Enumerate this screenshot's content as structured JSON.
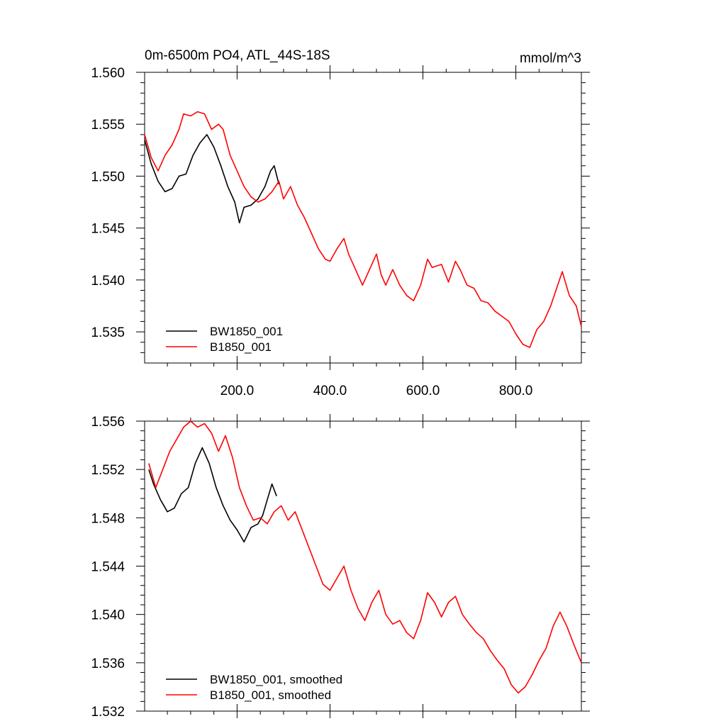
{
  "chart_data": [
    {
      "type": "line",
      "title": "0m-6500m PO4, ATL_44S-18S",
      "units": "mmol/m^3",
      "xlim": [
        1,
        941
      ],
      "ylim": [
        1.532,
        1.56
      ],
      "x_ticks": [
        200,
        400,
        600,
        800
      ],
      "x_tick_labels": [
        "200.0",
        "400.0",
        "600.0",
        "800.0"
      ],
      "y_ticks": [
        1.535,
        1.54,
        1.545,
        1.55,
        1.555,
        1.56
      ],
      "y_tick_labels": [
        "1.535",
        "1.540",
        "1.545",
        "1.550",
        "1.555",
        "1.560"
      ],
      "legend_position": "bottom-left",
      "series": [
        {
          "name": "BW1850_001",
          "color": "#000000",
          "x": [
            1,
            15,
            30,
            45,
            60,
            75,
            90,
            105,
            120,
            135,
            150,
            165,
            180,
            195,
            205,
            215,
            230,
            245,
            260,
            272,
            280,
            290
          ],
          "y": [
            1.5535,
            1.5512,
            1.5495,
            1.5485,
            1.5488,
            1.55,
            1.5502,
            1.552,
            1.5532,
            1.554,
            1.5528,
            1.551,
            1.549,
            1.5475,
            1.5455,
            1.547,
            1.5472,
            1.5478,
            1.549,
            1.5505,
            1.551,
            1.5492
          ]
        },
        {
          "name": "B1850_001",
          "color": "#ff0000",
          "x": [
            1,
            15,
            30,
            45,
            60,
            75,
            85,
            100,
            115,
            130,
            145,
            160,
            170,
            185,
            200,
            215,
            230,
            245,
            260,
            275,
            290,
            300,
            315,
            330,
            345,
            360,
            375,
            390,
            400,
            415,
            430,
            440,
            455,
            470,
            485,
            500,
            510,
            520,
            535,
            550,
            565,
            580,
            595,
            610,
            620,
            640,
            655,
            670,
            680,
            695,
            710,
            725,
            740,
            755,
            770,
            785,
            800,
            815,
            830,
            845,
            860,
            875,
            890,
            900,
            915,
            930,
            941
          ],
          "y": [
            1.554,
            1.5518,
            1.5505,
            1.552,
            1.553,
            1.5545,
            1.556,
            1.5558,
            1.5562,
            1.556,
            1.5545,
            1.555,
            1.5545,
            1.552,
            1.5505,
            1.549,
            1.548,
            1.5475,
            1.5478,
            1.5485,
            1.5495,
            1.5478,
            1.549,
            1.5472,
            1.546,
            1.5445,
            1.543,
            1.542,
            1.5418,
            1.543,
            1.544,
            1.5425,
            1.541,
            1.5395,
            1.541,
            1.5425,
            1.5405,
            1.5395,
            1.541,
            1.5395,
            1.5385,
            1.538,
            1.5395,
            1.542,
            1.5412,
            1.5415,
            1.5398,
            1.5418,
            1.541,
            1.5395,
            1.5392,
            1.538,
            1.5378,
            1.537,
            1.5365,
            1.536,
            1.5348,
            1.5338,
            1.5335,
            1.5352,
            1.536,
            1.5375,
            1.5395,
            1.5408,
            1.5385,
            1.5375,
            1.5355
          ]
        }
      ]
    },
    {
      "type": "line",
      "xlim": [
        1,
        941
      ],
      "ylim": [
        1.532,
        1.556
      ],
      "y_ticks": [
        1.532,
        1.536,
        1.54,
        1.544,
        1.548,
        1.552,
        1.556
      ],
      "y_tick_labels": [
        "1.532",
        "1.536",
        "1.540",
        "1.544",
        "1.548",
        "1.552",
        "1.556"
      ],
      "legend_position": "bottom-left",
      "series": [
        {
          "name": "BW1850_001, smoothed",
          "color": "#000000",
          "x": [
            10,
            20,
            35,
            50,
            65,
            80,
            95,
            110,
            125,
            140,
            155,
            170,
            185,
            200,
            215,
            230,
            245,
            255,
            265,
            275,
            285
          ],
          "y": [
            1.552,
            1.5508,
            1.5495,
            1.5485,
            1.5488,
            1.55,
            1.5505,
            1.5525,
            1.5538,
            1.5525,
            1.5505,
            1.549,
            1.5478,
            1.547,
            1.546,
            1.5472,
            1.5475,
            1.5482,
            1.5495,
            1.5508,
            1.5498
          ]
        },
        {
          "name": "B1850_001, smoothed",
          "color": "#ff0000",
          "x": [
            10,
            25,
            40,
            55,
            70,
            85,
            100,
            115,
            130,
            145,
            160,
            175,
            190,
            205,
            220,
            235,
            250,
            265,
            280,
            295,
            310,
            325,
            340,
            355,
            370,
            385,
            400,
            415,
            430,
            445,
            460,
            475,
            490,
            505,
            520,
            535,
            550,
            565,
            580,
            595,
            610,
            625,
            640,
            655,
            670,
            685,
            700,
            715,
            730,
            745,
            760,
            775,
            790,
            805,
            820,
            835,
            850,
            865,
            880,
            895,
            910,
            925,
            941
          ],
          "y": [
            1.5525,
            1.5505,
            1.552,
            1.5535,
            1.5545,
            1.5555,
            1.556,
            1.5555,
            1.5558,
            1.555,
            1.5535,
            1.5548,
            1.553,
            1.5505,
            1.549,
            1.5478,
            1.548,
            1.5475,
            1.5485,
            1.549,
            1.5478,
            1.5485,
            1.547,
            1.5455,
            1.544,
            1.5425,
            1.542,
            1.543,
            1.544,
            1.542,
            1.5405,
            1.5395,
            1.541,
            1.542,
            1.54,
            1.5392,
            1.5395,
            1.5385,
            1.538,
            1.5395,
            1.5418,
            1.541,
            1.5398,
            1.541,
            1.5415,
            1.54,
            1.5392,
            1.5385,
            1.538,
            1.537,
            1.5362,
            1.5355,
            1.5342,
            1.5335,
            1.534,
            1.535,
            1.5362,
            1.5372,
            1.539,
            1.5402,
            1.539,
            1.5375,
            1.536
          ]
        }
      ]
    }
  ]
}
